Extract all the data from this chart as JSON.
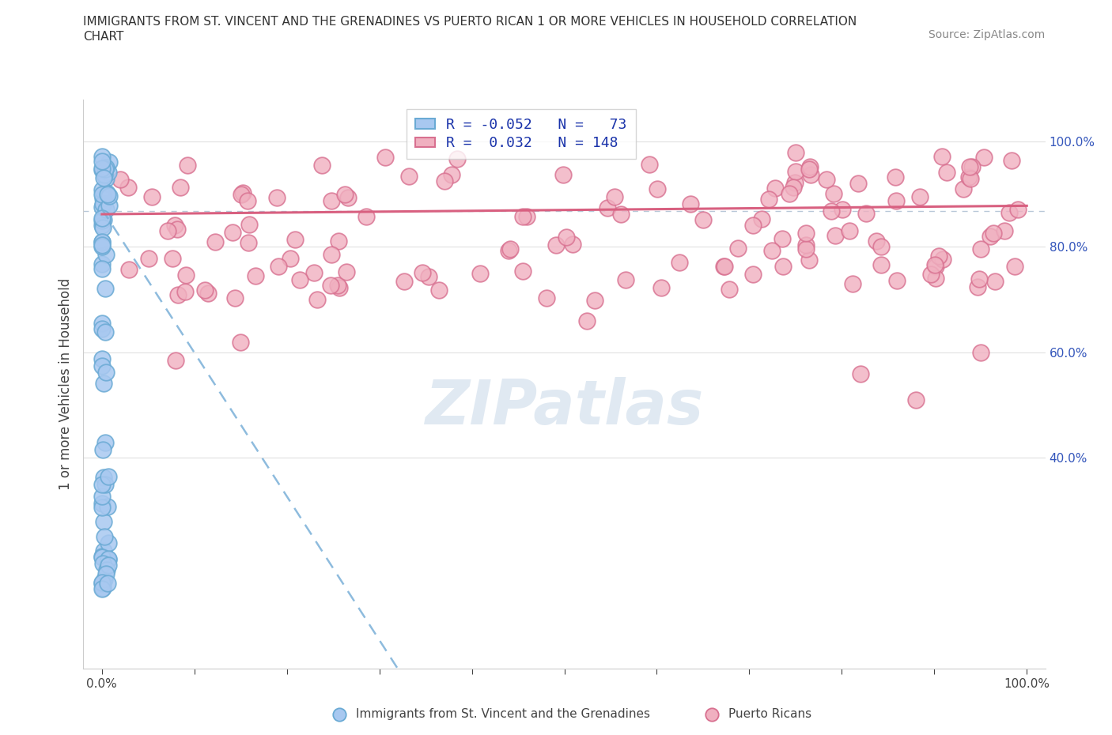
{
  "title_line1": "IMMIGRANTS FROM ST. VINCENT AND THE GRENADINES VS PUERTO RICAN 1 OR MORE VEHICLES IN HOUSEHOLD CORRELATION",
  "title_line2": "CHART",
  "source_text": "Source: ZipAtlas.com",
  "ylabel": "1 or more Vehicles in Household",
  "legend_blue_r": "-0.052",
  "legend_blue_n": "73",
  "legend_pink_r": "0.032",
  "legend_pink_n": "148",
  "blue_color": "#a8c8f0",
  "pink_color": "#f0b0c0",
  "blue_edge_color": "#6aaad4",
  "pink_edge_color": "#d87090",
  "blue_line_color": "#7ab0d8",
  "pink_line_color": "#d86080",
  "dashed_line_color": "#b8c8d8",
  "watermark": "ZIPatlas",
  "legend_label_blue": "Immigrants from St. Vincent and the Grenadines",
  "legend_label_pink": "Puerto Ricans",
  "right_ytick_values": [
    0.4,
    0.6,
    0.8,
    1.0
  ],
  "right_ytick_labels": [
    "40.0%",
    "60.0%",
    "80.0%",
    "100.0%"
  ],
  "xlim": [
    -0.02,
    1.02
  ],
  "ylim": [
    0.0,
    1.08
  ],
  "pink_trend_y_start": 0.862,
  "pink_trend_y_end": 0.878,
  "blue_trend_x_start": 0.0,
  "blue_trend_y_start": 0.872,
  "blue_trend_x_end": 0.32,
  "blue_trend_y_end": 0.0,
  "dashed_hline_y": 0.868
}
